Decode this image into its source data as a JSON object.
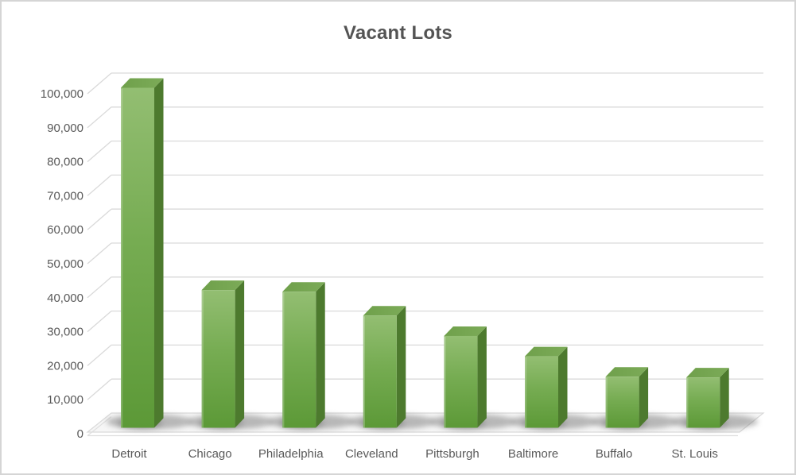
{
  "chart_data": {
    "type": "bar",
    "style": "3d-column",
    "title": "Vacant Lots",
    "xlabel": "",
    "ylabel": "",
    "categories": [
      "Detroit",
      "Chicago",
      "Philadelphia",
      "Cleveland",
      "Pittsburgh",
      "Baltimore",
      "Buffalo",
      "St. Louis"
    ],
    "values": [
      100000,
      40500,
      40000,
      33000,
      27000,
      21000,
      15000,
      14800
    ],
    "ylim": [
      0,
      100000
    ],
    "ytick_interval": 10000,
    "ytick_labels": [
      "0",
      "10,000",
      "20,000",
      "30,000",
      "40,000",
      "50,000",
      "60,000",
      "70,000",
      "80,000",
      "90,000",
      "100,000"
    ],
    "grid": true,
    "legend": false,
    "colors": {
      "bar_front_light": "#93BE72",
      "bar_front_mid": "#76AC52",
      "bar_front_dark": "#5C9937",
      "bar_side": "#4D7A2E",
      "bar_top": "#6FA04B",
      "gridline": "#D9D9D9",
      "floor": "#F6F6F6",
      "shadow": "#787878",
      "axis_label": "#595959",
      "title": "#545454",
      "frame_border": "#D5D5D5"
    }
  }
}
